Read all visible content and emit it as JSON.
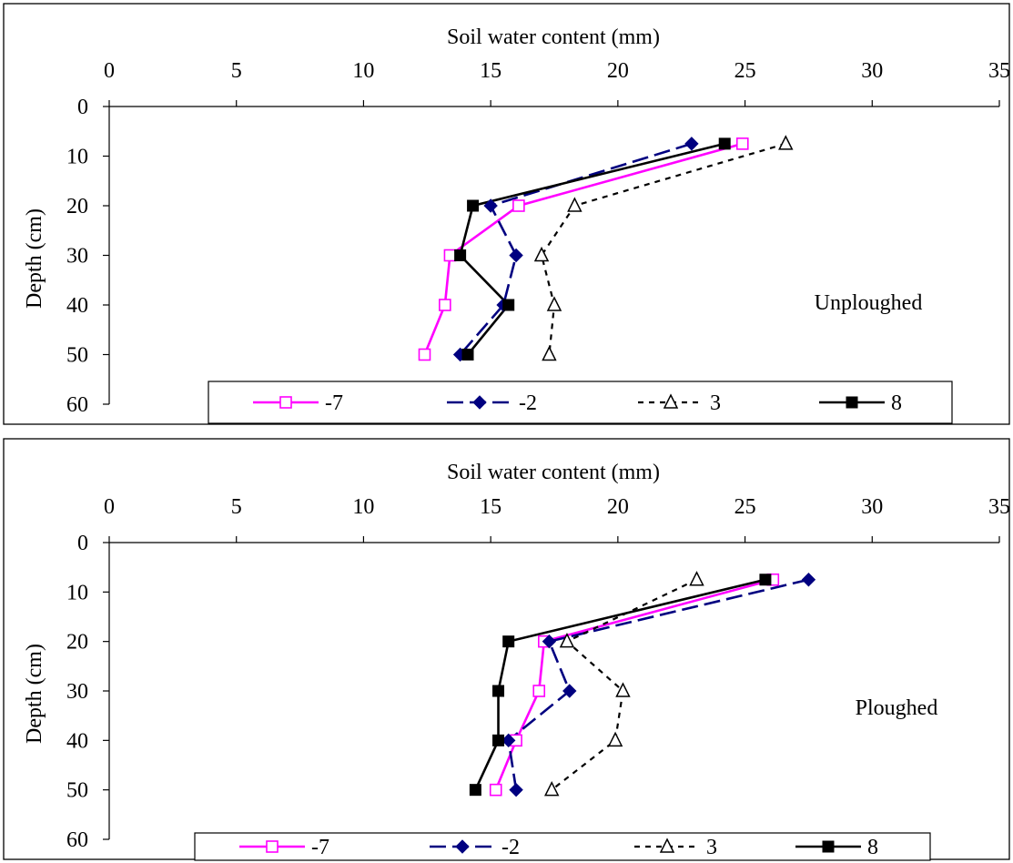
{
  "chart_data": [
    {
      "type": "line",
      "title": "",
      "xlabel": "Soil water content (mm)",
      "ylabel": "Depth (cm)",
      "annotation": "Unploughed",
      "xlim": [
        0,
        35
      ],
      "ylim": [
        0,
        60
      ],
      "y_inverted": true,
      "x_axis_position": "top",
      "x_ticks": [
        0,
        5,
        10,
        15,
        20,
        25,
        30,
        35
      ],
      "y_ticks": [
        0,
        10,
        20,
        30,
        40,
        50,
        60
      ],
      "grid": false,
      "legend_position": "bottom",
      "series": [
        {
          "name": "-7",
          "color": "#ff00ff",
          "style": "solid",
          "marker": "square-open",
          "points": [
            [
              24.9,
              7.5
            ],
            [
              16.1,
              20
            ],
            [
              13.4,
              30
            ],
            [
              13.2,
              40
            ],
            [
              12.4,
              50
            ]
          ]
        },
        {
          "name": "-2",
          "color": "#000080",
          "style": "dashed",
          "marker": "diamond-filled",
          "points": [
            [
              22.9,
              7.5
            ],
            [
              15.0,
              20
            ],
            [
              16.0,
              30
            ],
            [
              15.5,
              40
            ],
            [
              13.8,
              50
            ]
          ]
        },
        {
          "name": "3",
          "color": "#000000",
          "style": "dotted",
          "marker": "triangle-open",
          "points": [
            [
              26.6,
              7.5
            ],
            [
              18.3,
              20
            ],
            [
              17.0,
              30
            ],
            [
              17.5,
              40
            ],
            [
              17.3,
              50
            ]
          ]
        },
        {
          "name": "8",
          "color": "#000000",
          "style": "solid",
          "marker": "square-filled",
          "points": [
            [
              24.2,
              7.5
            ],
            [
              14.3,
              20
            ],
            [
              13.8,
              30
            ],
            [
              15.7,
              40
            ],
            [
              14.1,
              50
            ]
          ]
        }
      ]
    },
    {
      "type": "line",
      "title": "",
      "xlabel": "Soil water content (mm)",
      "ylabel": "Depth (cm)",
      "annotation": "Ploughed",
      "xlim": [
        0,
        35
      ],
      "ylim": [
        0,
        60
      ],
      "y_inverted": true,
      "x_axis_position": "top",
      "x_ticks": [
        0,
        5,
        10,
        15,
        20,
        25,
        30,
        35
      ],
      "y_ticks": [
        0,
        10,
        20,
        30,
        40,
        50,
        60
      ],
      "grid": false,
      "legend_position": "bottom",
      "series": [
        {
          "name": "-7",
          "color": "#ff00ff",
          "style": "solid",
          "marker": "square-open",
          "points": [
            [
              26.1,
              7.5
            ],
            [
              17.1,
              20
            ],
            [
              16.9,
              30
            ],
            [
              16.0,
              40
            ],
            [
              15.2,
              50
            ]
          ]
        },
        {
          "name": "-2",
          "color": "#000080",
          "style": "dashed",
          "marker": "diamond-filled",
          "points": [
            [
              27.5,
              7.5
            ],
            [
              17.3,
              20
            ],
            [
              18.1,
              30
            ],
            [
              15.7,
              40
            ],
            [
              16.0,
              50
            ]
          ]
        },
        {
          "name": "3",
          "color": "#000000",
          "style": "dotted",
          "marker": "triangle-open",
          "points": [
            [
              23.1,
              7.5
            ],
            [
              18.0,
              20
            ],
            [
              20.2,
              30
            ],
            [
              19.9,
              40
            ],
            [
              17.4,
              50
            ]
          ]
        },
        {
          "name": "8",
          "color": "#000000",
          "style": "solid",
          "marker": "square-filled",
          "points": [
            [
              25.8,
              7.5
            ],
            [
              15.7,
              20
            ],
            [
              15.3,
              30
            ],
            [
              15.3,
              40
            ],
            [
              14.4,
              50
            ]
          ]
        }
      ]
    }
  ]
}
